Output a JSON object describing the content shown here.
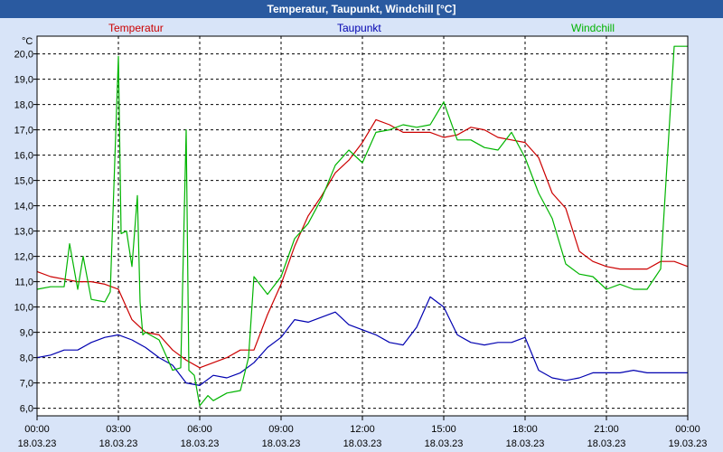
{
  "window": {
    "title": "Temperatur, Taupunkt, Windchill [°C]"
  },
  "chart_data": {
    "type": "line",
    "title": "Temperatur, Taupunkt, Windchill [°C]",
    "ylabel": "°C",
    "ylim": [
      5.7,
      20.7
    ],
    "yticks": [
      "6,0",
      "7,0",
      "8,0",
      "9,0",
      "10,0",
      "11,0",
      "12,0",
      "13,0",
      "14,0",
      "15,0",
      "16,0",
      "17,0",
      "18,0",
      "19,0",
      "20,0"
    ],
    "xlim": [
      0,
      24
    ],
    "xticks": [
      {
        "time": "00:00",
        "date": "18.03.23"
      },
      {
        "time": "03:00",
        "date": "18.03.23"
      },
      {
        "time": "06:00",
        "date": "18.03.23"
      },
      {
        "time": "09:00",
        "date": "18.03.23"
      },
      {
        "time": "12:00",
        "date": "18.03.23"
      },
      {
        "time": "15:00",
        "date": "18.03.23"
      },
      {
        "time": "18:00",
        "date": "18.03.23"
      },
      {
        "time": "21:00",
        "date": "18.03.23"
      },
      {
        "time": "00:00",
        "date": "19.03.23"
      }
    ],
    "series": [
      {
        "name": "Temperatur",
        "color": "#cc0000",
        "x": [
          0,
          0.5,
          1,
          1.5,
          2,
          2.5,
          3,
          3.5,
          4,
          4.5,
          5,
          5.5,
          6,
          6.5,
          7,
          7.5,
          8,
          8.5,
          9,
          9.5,
          10,
          10.5,
          11,
          11.5,
          12,
          12.5,
          13,
          13.5,
          14,
          14.5,
          15,
          15.5,
          16,
          16.5,
          17,
          17.5,
          18,
          18.5,
          19,
          19.5,
          20,
          20.5,
          21,
          21.5,
          22,
          22.5,
          23,
          23.5,
          24
        ],
        "values": [
          11.4,
          11.2,
          11.1,
          11.0,
          11.0,
          10.9,
          10.7,
          9.5,
          9.0,
          8.9,
          8.3,
          7.9,
          7.6,
          7.8,
          8.0,
          8.3,
          8.3,
          9.7,
          10.9,
          12.4,
          13.6,
          14.4,
          15.3,
          15.8,
          16.5,
          17.4,
          17.2,
          16.9,
          16.9,
          16.9,
          16.7,
          16.8,
          17.1,
          17.0,
          16.7,
          16.6,
          16.5,
          15.9,
          14.5,
          13.9,
          12.2,
          11.8,
          11.6,
          11.5,
          11.5,
          11.5,
          11.8,
          11.8,
          11.6
        ]
      },
      {
        "name": "Taupunkt",
        "color": "#0000b0",
        "x": [
          0,
          0.5,
          1,
          1.5,
          2,
          2.5,
          3,
          3.5,
          4,
          4.5,
          5,
          5.5,
          6,
          6.5,
          7,
          7.5,
          8,
          8.5,
          9,
          9.5,
          10,
          10.5,
          11,
          11.5,
          12,
          12.5,
          13,
          13.5,
          14,
          14.5,
          15,
          15.5,
          16,
          16.5,
          17,
          17.5,
          18,
          18.5,
          19,
          19.5,
          20,
          20.5,
          21,
          21.5,
          22,
          22.5,
          23,
          23.5,
          24
        ],
        "values": [
          8.0,
          8.1,
          8.3,
          8.3,
          8.6,
          8.8,
          8.9,
          8.7,
          8.4,
          8.0,
          7.7,
          7.0,
          6.9,
          7.3,
          7.2,
          7.4,
          7.8,
          8.4,
          8.8,
          9.5,
          9.4,
          9.6,
          9.8,
          9.3,
          9.1,
          8.9,
          8.6,
          8.5,
          9.2,
          10.4,
          10.0,
          8.9,
          8.6,
          8.5,
          8.6,
          8.6,
          8.8,
          7.5,
          7.2,
          7.1,
          7.2,
          7.4,
          7.4,
          7.4,
          7.5,
          7.4,
          7.4,
          7.4,
          7.4
        ]
      },
      {
        "name": "Windchill",
        "color": "#00b400",
        "x": [
          0,
          0.5,
          1,
          1.2,
          1.5,
          1.7,
          2,
          2.5,
          2.7,
          3,
          3.1,
          3.3,
          3.5,
          3.7,
          3.8,
          3.9,
          4,
          4.5,
          5,
          5.3,
          5.5,
          5.6,
          5.8,
          6,
          6.3,
          6.5,
          7,
          7.5,
          7.8,
          8,
          8.5,
          9,
          9.5,
          10,
          10.5,
          11,
          11.5,
          12,
          12.5,
          13,
          13.5,
          14,
          14.5,
          15,
          15.5,
          16,
          16.5,
          17,
          17.5,
          18,
          18.5,
          19,
          19.5,
          20,
          20.5,
          21,
          21.5,
          22,
          22.5,
          23,
          23.5,
          24
        ],
        "values": [
          10.7,
          10.8,
          10.8,
          12.5,
          10.7,
          12.0,
          10.3,
          10.2,
          10.6,
          19.9,
          12.9,
          13.0,
          11.6,
          14.4,
          10.2,
          8.9,
          9.0,
          8.7,
          7.5,
          7.6,
          17.0,
          7.5,
          7.3,
          6.1,
          6.5,
          6.3,
          6.6,
          6.7,
          8.0,
          11.2,
          10.5,
          11.2,
          12.7,
          13.3,
          14.3,
          15.6,
          16.2,
          15.7,
          16.9,
          17.0,
          17.2,
          17.1,
          17.2,
          18.1,
          16.6,
          16.6,
          16.3,
          16.2,
          16.9,
          15.9,
          14.5,
          13.5,
          11.7,
          11.3,
          11.2,
          10.7,
          10.9,
          10.7,
          10.7,
          11.5,
          20.3,
          20.3
        ]
      }
    ]
  }
}
